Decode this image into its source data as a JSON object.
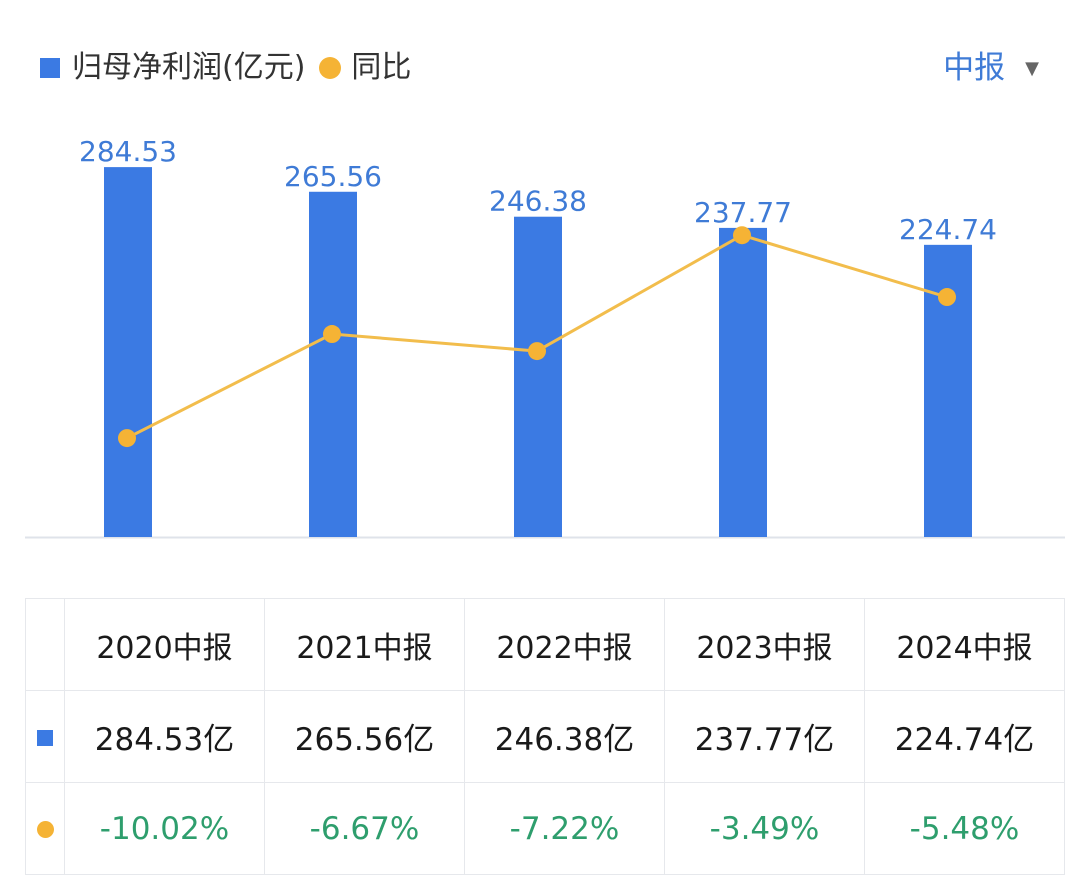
{
  "legend": {
    "bar_label": "归母净利润(亿元)",
    "line_label": "同比"
  },
  "period_select": {
    "label": "中报",
    "caret": "▼"
  },
  "colors": {
    "bar": "#3b7ae3",
    "line": "#f2bd4c",
    "dot": "#f5b335",
    "bar_label": "#3f7bd6",
    "negative": "#2e9e6d",
    "axis": "#dfe3ea",
    "accent": "#3f7bd6"
  },
  "chart_data": {
    "type": "bar",
    "categories": [
      "2020中报",
      "2021中报",
      "2022中报",
      "2023中报",
      "2024中报"
    ],
    "series": [
      {
        "type": "bar",
        "values": [
          284.53,
          265.56,
          246.38,
          237.77,
          224.74
        ],
        "labels": [
          "284.53",
          "265.56",
          "246.38",
          "237.77",
          "224.74"
        ]
      },
      {
        "type": "line",
        "values": [
          -10.02,
          -6.67,
          -7.22,
          -3.49,
          -5.48
        ]
      }
    ],
    "legend": [
      "归母净利润(亿元)",
      "同比"
    ],
    "legend_position": "top-left",
    "grid": false
  },
  "table": {
    "headers": [
      "2020中报",
      "2021中报",
      "2022中报",
      "2023中报",
      "2024中报"
    ],
    "values": [
      "284.53亿",
      "265.56亿",
      "246.38亿",
      "237.77亿",
      "224.74亿"
    ],
    "growth": [
      "-10.02%",
      "-6.67%",
      "-7.22%",
      "-3.49%",
      "-5.48%"
    ]
  }
}
